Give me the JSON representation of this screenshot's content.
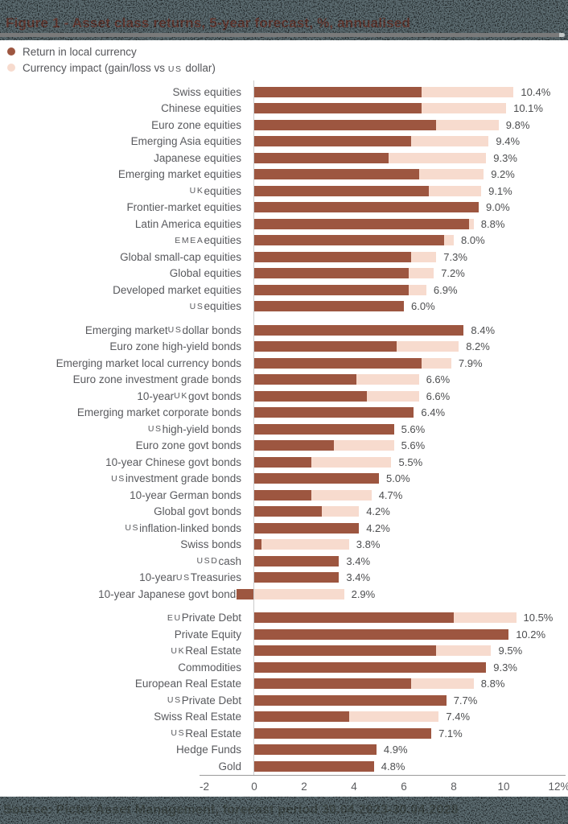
{
  "header": {
    "title": "Figure 1 - Asset class returns, 5-year forecast, %, annualised"
  },
  "legend": [
    {
      "label": "Return in local currency",
      "color": "#9d5640"
    },
    {
      "label": "Currency impact (gain/loss vs US dollar)",
      "color": "#f7dbce"
    }
  ],
  "footer": {
    "text": "Source: Pictet Asset Management, forecast period 30.04.2023-30.04.2028"
  },
  "chart_data": {
    "type": "bar",
    "orientation": "horizontal",
    "stacked": true,
    "unit": "%",
    "xlim": [
      -2,
      12
    ],
    "grid": false,
    "legend_position": "top-left",
    "colors": {
      "local": "#9d5640",
      "currency": "#f7dbce"
    },
    "series_names": [
      "Return in local currency",
      "Currency impact (gain/loss vs US dollar)"
    ],
    "ticks": [
      {
        "v": -2,
        "label": "-2"
      },
      {
        "v": 0,
        "label": "0"
      },
      {
        "v": 2,
        "label": "2"
      },
      {
        "v": 4,
        "label": "4"
      },
      {
        "v": 6,
        "label": "6"
      },
      {
        "v": 8,
        "label": "8"
      },
      {
        "v": 10,
        "label": "10"
      },
      {
        "v": 12,
        "label": "12%"
      }
    ],
    "sections": [
      {
        "name": "equities",
        "items": [
          {
            "label": "Swiss equities",
            "total": 10.4,
            "total_label": "10.4%",
            "local": 6.7,
            "currency": 3.7
          },
          {
            "label": "Chinese equities",
            "total": 10.1,
            "total_label": "10.1%",
            "local": 6.7,
            "currency": 3.4
          },
          {
            "label": "Euro zone equities",
            "total": 9.8,
            "total_label": "9.8%",
            "local": 7.3,
            "currency": 2.5
          },
          {
            "label": "Emerging Asia equities",
            "total": 9.4,
            "total_label": "9.4%",
            "local": 6.3,
            "currency": 3.1
          },
          {
            "label": "Japanese equities",
            "total": 9.3,
            "total_label": "9.3%",
            "local": 5.4,
            "currency": 3.9
          },
          {
            "label": "Emerging market equities",
            "total": 9.2,
            "total_label": "9.2%",
            "local": 6.6,
            "currency": 2.6
          },
          {
            "label": "UK equities",
            "total": 9.1,
            "total_label": "9.1%",
            "local": 7.0,
            "currency": 2.1
          },
          {
            "label": "Frontier-market equities",
            "total": 9.0,
            "total_label": "9.0%",
            "local": 9.0,
            "currency": 0
          },
          {
            "label": "Latin America equities",
            "total": 8.8,
            "total_label": "8.8%",
            "local": 8.6,
            "currency": 0.2
          },
          {
            "label": "EMEA equities",
            "total": 8.0,
            "total_label": "8.0%",
            "local": 7.6,
            "currency": 0.4
          },
          {
            "label": "Global small-cap equities",
            "total": 7.3,
            "total_label": "7.3%",
            "local": 6.3,
            "currency": 1.0
          },
          {
            "label": "Global equities",
            "total": 7.2,
            "total_label": "7.2%",
            "local": 6.2,
            "currency": 1.0
          },
          {
            "label": "Developed market equities",
            "total": 6.9,
            "total_label": "6.9%",
            "local": 6.2,
            "currency": 0.7
          },
          {
            "label": "US equities",
            "total": 6.0,
            "total_label": "6.0%",
            "local": 6.0,
            "currency": 0
          }
        ]
      },
      {
        "name": "bonds",
        "items": [
          {
            "label": "Emerging market US dollar bonds",
            "total": 8.4,
            "total_label": "8.4%",
            "local": 8.4,
            "currency": 0
          },
          {
            "label": "Euro zone high-yield bonds",
            "total": 8.2,
            "total_label": "8.2%",
            "local": 5.7,
            "currency": 2.5
          },
          {
            "label": "Emerging market local currency bonds",
            "total": 7.9,
            "total_label": "7.9%",
            "local": 6.7,
            "currency": 1.2
          },
          {
            "label": "Euro zone investment grade bonds",
            "total": 6.6,
            "total_label": "6.6%",
            "local": 4.1,
            "currency": 2.5
          },
          {
            "label": "10-year UK govt bonds",
            "total": 6.6,
            "total_label": "6.6%",
            "local": 4.5,
            "currency": 2.1
          },
          {
            "label": "Emerging market corporate bonds",
            "total": 6.4,
            "total_label": "6.4%",
            "local": 6.4,
            "currency": 0
          },
          {
            "label": "US high-yield bonds",
            "total": 5.6,
            "total_label": "5.6%",
            "local": 5.6,
            "currency": 0
          },
          {
            "label": "Euro zone govt bonds",
            "total": 5.6,
            "total_label": "5.6%",
            "local": 3.2,
            "currency": 2.4
          },
          {
            "label": "10-year Chinese govt bonds",
            "total": 5.5,
            "total_label": "5.5%",
            "local": 2.3,
            "currency": 3.2
          },
          {
            "label": "US investment grade bonds",
            "total": 5.0,
            "total_label": "5.0%",
            "local": 5.0,
            "currency": 0
          },
          {
            "label": "10-year German bonds",
            "total": 4.7,
            "total_label": "4.7%",
            "local": 2.3,
            "currency": 2.4
          },
          {
            "label": "Global govt bonds",
            "total": 4.2,
            "total_label": "4.2%",
            "local": 2.7,
            "currency": 1.5
          },
          {
            "label": "US inflation-linked bonds",
            "total": 4.2,
            "total_label": "4.2%",
            "local": 4.2,
            "currency": 0
          },
          {
            "label": "Swiss bonds",
            "total": 3.8,
            "total_label": "3.8%",
            "local": 0.3,
            "currency": 3.5
          },
          {
            "label": "USD cash",
            "total": 3.4,
            "total_label": "3.4%",
            "local": 3.4,
            "currency": 0
          },
          {
            "label": "10-year US Treasuries",
            "total": 3.4,
            "total_label": "3.4%",
            "local": 3.4,
            "currency": 0
          },
          {
            "label": "10-year Japanese govt bonds",
            "total": 2.9,
            "total_label": "2.9%",
            "local": -0.7,
            "currency": 3.6
          }
        ]
      },
      {
        "name": "alternatives",
        "items": [
          {
            "label": "EU Private Debt",
            "total": 10.5,
            "total_label": "10.5%",
            "local": 8.0,
            "currency": 2.5
          },
          {
            "label": "Private Equity",
            "total": 10.2,
            "total_label": "10.2%",
            "local": 10.2,
            "currency": 0
          },
          {
            "label": "UK Real Estate",
            "total": 9.5,
            "total_label": "9.5%",
            "local": 7.3,
            "currency": 2.2
          },
          {
            "label": "Commodities",
            "total": 9.3,
            "total_label": "9.3%",
            "local": 9.3,
            "currency": 0
          },
          {
            "label": "European Real Estate",
            "total": 8.8,
            "total_label": "8.8%",
            "local": 6.3,
            "currency": 2.5
          },
          {
            "label": "US Private Debt",
            "total": 7.7,
            "total_label": "7.7%",
            "local": 7.7,
            "currency": 0
          },
          {
            "label": "Swiss Real Estate",
            "total": 7.4,
            "total_label": "7.4%",
            "local": 3.8,
            "currency": 3.6
          },
          {
            "label": "US Real Estate",
            "total": 7.1,
            "total_label": "7.1%",
            "local": 7.1,
            "currency": 0
          },
          {
            "label": "Hedge Funds",
            "total": 4.9,
            "total_label": "4.9%",
            "local": 4.9,
            "currency": 0
          },
          {
            "label": "Gold",
            "total": 4.8,
            "total_label": "4.8%",
            "local": 4.8,
            "currency": 0
          }
        ]
      }
    ]
  }
}
